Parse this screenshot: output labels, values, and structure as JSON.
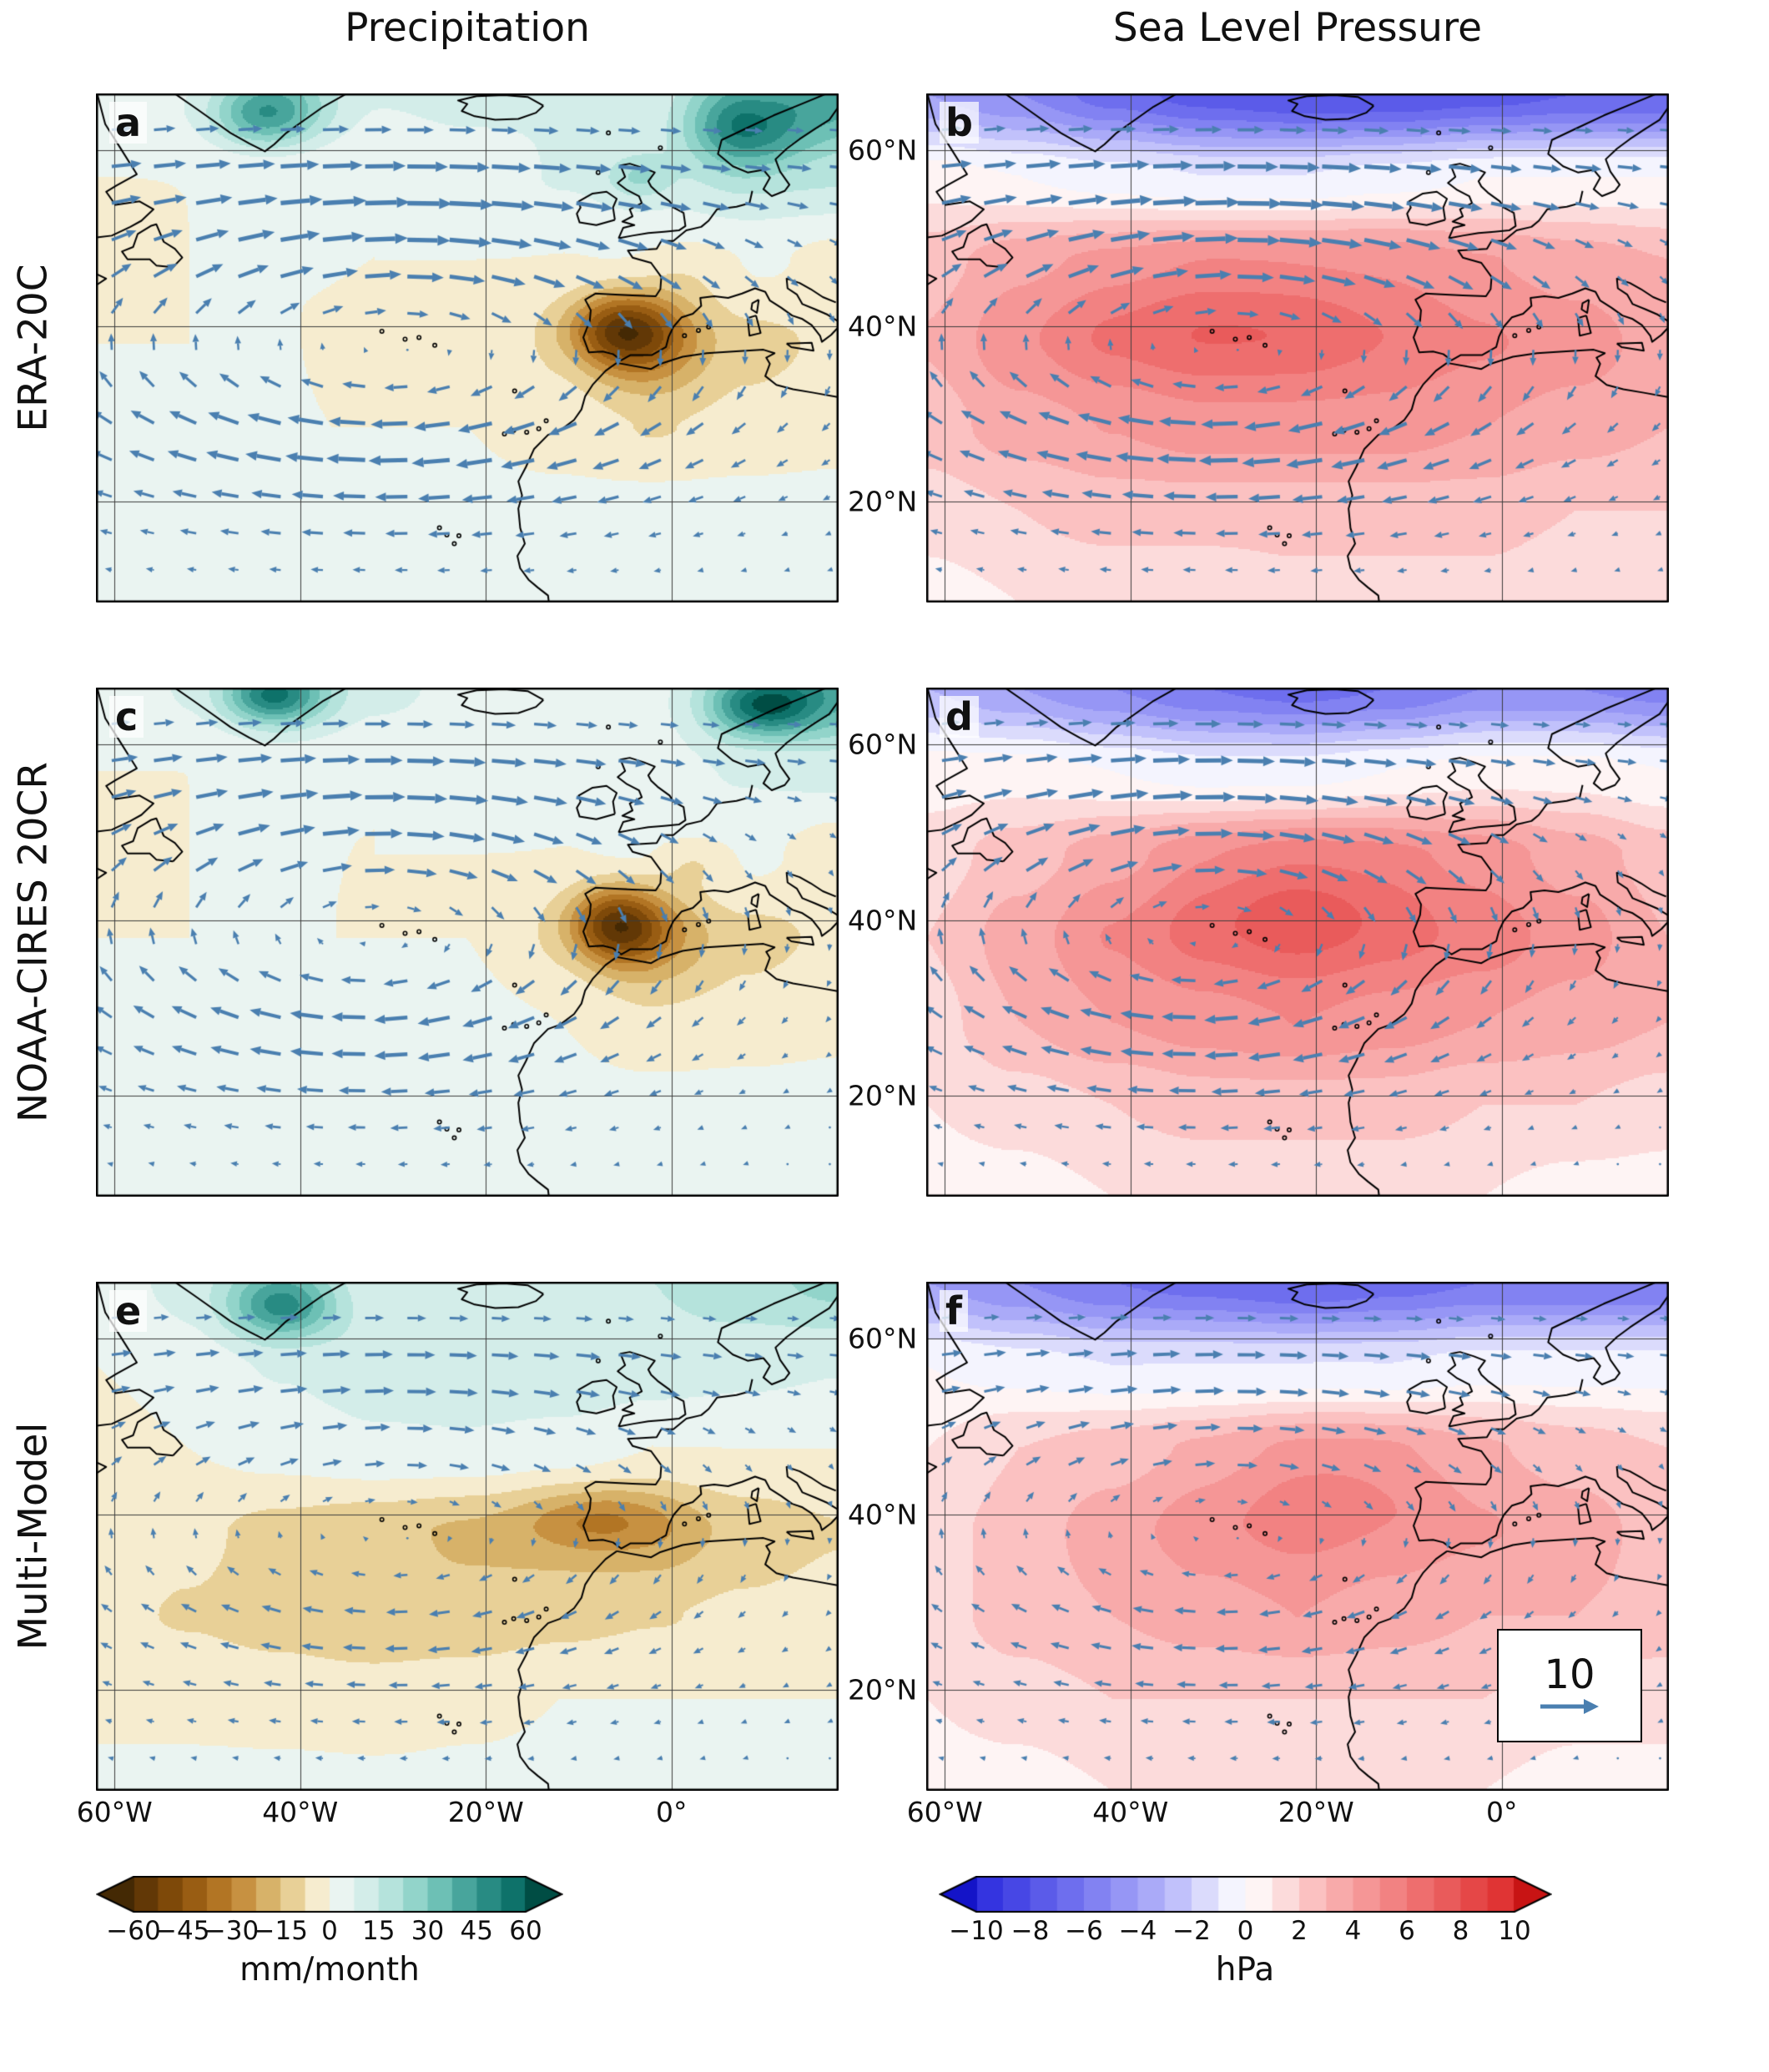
{
  "figure": {
    "columns": [
      {
        "title": "Precipitation"
      },
      {
        "title": "Sea Level Pressure"
      }
    ],
    "rows": [
      {
        "label": "ERA-20C"
      },
      {
        "label": "NOAA-CIRES 20CR"
      },
      {
        "label": "Multi-Model"
      }
    ],
    "panels": [
      {
        "id": "a"
      },
      {
        "id": "b"
      },
      {
        "id": "c"
      },
      {
        "id": "d"
      },
      {
        "id": "e"
      },
      {
        "id": "f"
      }
    ],
    "axes": {
      "extent": {
        "lon_min": -62,
        "lon_max": 18,
        "lat_min": 8.5,
        "lat_max": 66.5
      },
      "lat_ticks": [
        {
          "value": 60,
          "label": "60°N"
        },
        {
          "value": 40,
          "label": "40°N"
        },
        {
          "value": 20,
          "label": "20°N"
        }
      ],
      "lon_ticks": [
        {
          "value": -60,
          "label": "60°W"
        },
        {
          "value": -40,
          "label": "40°W"
        },
        {
          "value": -20,
          "label": "20°W"
        },
        {
          "value": 0,
          "label": "0°"
        }
      ]
    },
    "vector_legend": {
      "value": "10"
    },
    "colorbars": [
      {
        "label": "mm/month",
        "vmin": -60,
        "vmax": 60,
        "step": 7.5,
        "ticks": [
          {
            "value": -60,
            "label": "−60"
          },
          {
            "value": -45,
            "label": "−45"
          },
          {
            "value": -30,
            "label": "−30"
          },
          {
            "value": -15,
            "label": "−15"
          },
          {
            "value": 0,
            "label": "0"
          },
          {
            "value": 15,
            "label": "15"
          },
          {
            "value": 30,
            "label": "30"
          },
          {
            "value": 45,
            "label": "45"
          },
          {
            "value": 60,
            "label": "60"
          }
        ]
      },
      {
        "label": "hPa",
        "vmin": -10,
        "vmax": 10,
        "step": 1,
        "ticks": [
          {
            "value": -10,
            "label": "−10"
          },
          {
            "value": -8,
            "label": "−8"
          },
          {
            "value": -6,
            "label": "−6"
          },
          {
            "value": -4,
            "label": "−4"
          },
          {
            "value": -2,
            "label": "−2"
          },
          {
            "value": 0,
            "label": "0"
          },
          {
            "value": 2,
            "label": "2"
          },
          {
            "value": 4,
            "label": "4"
          },
          {
            "value": 6,
            "label": "6"
          },
          {
            "value": 8,
            "label": "8"
          },
          {
            "value": 10,
            "label": "10"
          }
        ]
      }
    ],
    "colors": {
      "arrow": "#4a7fb0",
      "coast": "#000000",
      "grid": "#3c3c3c",
      "precip_stops": [
        [
          -70,
          "#3f2604"
        ],
        [
          -60,
          "#543005"
        ],
        [
          -45,
          "#8c510a"
        ],
        [
          -30,
          "#bf812d"
        ],
        [
          -15,
          "#dfc27d"
        ],
        [
          -5,
          "#f6e8c3"
        ],
        [
          0,
          "#f7f7f4"
        ],
        [
          5,
          "#e6f3f0"
        ],
        [
          15,
          "#c7eae5"
        ],
        [
          30,
          "#80cdc1"
        ],
        [
          45,
          "#35978f"
        ],
        [
          60,
          "#01665e"
        ],
        [
          70,
          "#00453b"
        ]
      ],
      "slp_stops": [
        [
          -11,
          "#1414c8"
        ],
        [
          -10,
          "#2a2ade"
        ],
        [
          -6,
          "#7878f0"
        ],
        [
          -3,
          "#b4b4fa"
        ],
        [
          -1,
          "#e8e8fd"
        ],
        [
          0,
          "#ffffff"
        ],
        [
          1,
          "#fde8e8"
        ],
        [
          3,
          "#fab4b4"
        ],
        [
          6,
          "#f07878"
        ],
        [
          10,
          "#de2a2a"
        ],
        [
          11,
          "#c81414"
        ]
      ]
    }
  },
  "chart_data": {
    "type": "heatmap",
    "grid_lons": [
      -62,
      -52,
      -42,
      -32,
      -22,
      -12,
      -2,
      8,
      18
    ],
    "grid_lats": [
      66.5,
      57,
      47.5,
      38,
      28.5,
      19,
      8.5
    ],
    "panels": {
      "a": {
        "kind": "precip",
        "row": "ERA-20C",
        "units": "mm/month",
        "values": [
          [
            0,
            5,
            20,
            8,
            10,
            8,
            8,
            20,
            40
          ],
          [
            0,
            0,
            0,
            0,
            3,
            8,
            8,
            12,
            15
          ],
          [
            -3,
            0,
            0,
            0,
            0,
            0,
            3,
            3,
            -3
          ],
          [
            0,
            0,
            0,
            0,
            0,
            -6,
            -25,
            -10,
            -6
          ],
          [
            0,
            0,
            0,
            0,
            0,
            -3,
            -8,
            -5,
            -3
          ],
          [
            2,
            2,
            2,
            2,
            2,
            2,
            3,
            3,
            3
          ],
          [
            4,
            4,
            4,
            4,
            4,
            4,
            4,
            4,
            4
          ]
        ],
        "features": [
          {
            "lon": -5.5,
            "lat": 39.5,
            "sx": 4,
            "sy": 3,
            "amp": -42
          },
          {
            "lon": 8,
            "lat": 62.5,
            "sx": 4.5,
            "sy": 3.5,
            "amp": 38
          },
          {
            "lon": -44,
            "lat": 64,
            "sx": 4,
            "sy": 2.5,
            "amp": 30
          },
          {
            "lon": -3.5,
            "lat": 57,
            "sx": 2.5,
            "sy": 1.8,
            "amp": 16
          },
          {
            "lon": 2,
            "lat": 46.5,
            "sx": 4,
            "sy": 2.5,
            "amp": -8
          }
        ]
      },
      "b": {
        "kind": "slp",
        "row": "ERA-20C",
        "units": "hPa",
        "values": [
          [
            -4,
            -5,
            -6.5,
            -7.5,
            -8,
            -8,
            -7.5,
            -7,
            -7
          ],
          [
            0.5,
            0,
            -0.5,
            -1,
            -1,
            -0.5,
            0,
            0,
            0
          ],
          [
            2.5,
            3.5,
            4,
            4.5,
            4.5,
            4.5,
            4,
            3.5,
            3
          ],
          [
            3,
            4.5,
            5.5,
            6,
            6,
            5.5,
            5,
            4.5,
            3.5
          ],
          [
            2.5,
            3.5,
            4,
            4.5,
            4.5,
            4.5,
            4,
            3.5,
            3
          ],
          [
            1.5,
            2,
            2.5,
            2.5,
            2.5,
            2.5,
            2.5,
            2,
            2
          ],
          [
            0.5,
            1,
            1,
            1,
            1.5,
            1.5,
            1.5,
            1,
            1
          ]
        ],
        "features": [
          {
            "lon": -30,
            "lat": 41,
            "sx": 14,
            "sy": 5,
            "amp": 1.2
          }
        ]
      },
      "c": {
        "kind": "precip",
        "row": "NOAA-CIRES 20CR",
        "units": "mm/month",
        "values": [
          [
            0,
            8,
            25,
            10,
            5,
            5,
            5,
            15,
            35
          ],
          [
            0,
            0,
            0,
            0,
            2,
            5,
            5,
            8,
            10
          ],
          [
            -3,
            0,
            0,
            0,
            0,
            0,
            3,
            3,
            -5
          ],
          [
            0,
            0,
            0,
            0,
            0,
            -6,
            -22,
            -10,
            -6
          ],
          [
            2,
            2,
            2,
            2,
            2,
            0,
            -6,
            -4,
            -2
          ],
          [
            3,
            3,
            3,
            3,
            3,
            3,
            3,
            3,
            3
          ],
          [
            4,
            4,
            4,
            4,
            4,
            4,
            4,
            4,
            4
          ]
        ],
        "features": [
          {
            "lon": -6,
            "lat": 39.5,
            "sx": 3.5,
            "sy": 3,
            "amp": -45
          },
          {
            "lon": 10,
            "lat": 64.5,
            "sx": 4,
            "sy": 2.5,
            "amp": 48
          },
          {
            "lon": -43,
            "lat": 65.5,
            "sx": 3.5,
            "sy": 2,
            "amp": 32
          },
          {
            "lon": 2.5,
            "lat": 46.5,
            "sx": 3,
            "sy": 2,
            "amp": -10
          }
        ]
      },
      "d": {
        "kind": "slp",
        "row": "NOAA-CIRES 20CR",
        "units": "hPa",
        "values": [
          [
            -3,
            -4,
            -5,
            -6,
            -6.5,
            -6,
            -5,
            -5,
            -5.5
          ],
          [
            0.5,
            0.5,
            0,
            -0.5,
            -0.5,
            0,
            0.5,
            0.5,
            0
          ],
          [
            1.5,
            2.5,
            3.5,
            4.5,
            5,
            5,
            4.5,
            3.5,
            2.5
          ],
          [
            2,
            3.5,
            5,
            6,
            6.5,
            6,
            5.5,
            4.5,
            3
          ],
          [
            1.5,
            3,
            4,
            4.5,
            5,
            4.5,
            4,
            3.5,
            3
          ],
          [
            1,
            1.5,
            2,
            2.5,
            2.5,
            2.5,
            2,
            2,
            1.5
          ],
          [
            0.5,
            0.5,
            1,
            1,
            1,
            1,
            1,
            0.5,
            0.5
          ]
        ],
        "features": [
          {
            "lon": -22,
            "lat": 42,
            "sx": 9,
            "sy": 4.5,
            "amp": 1.5
          }
        ]
      },
      "e": {
        "kind": "precip",
        "row": "Multi-Model",
        "units": "mm/month",
        "values": [
          [
            3,
            10,
            22,
            8,
            12,
            15,
            15,
            20,
            25
          ],
          [
            0,
            3,
            8,
            12,
            15,
            15,
            12,
            10,
            8
          ],
          [
            -3,
            0,
            3,
            6,
            6,
            4,
            0,
            0,
            0
          ],
          [
            -4,
            -6,
            -10,
            -13,
            -16,
            -18,
            -20,
            -12,
            -8
          ],
          [
            -6,
            -8,
            -10,
            -13,
            -13,
            -10,
            -8,
            -6,
            -4
          ],
          [
            -3,
            -3,
            -4,
            -4,
            -2,
            0,
            0,
            0,
            0
          ],
          [
            3,
            3,
            3,
            2,
            2,
            2,
            2,
            2,
            2
          ]
        ],
        "features": [
          {
            "lon": -42,
            "lat": 63.5,
            "sx": 4,
            "sy": 2.5,
            "amp": 30
          },
          {
            "lon": -8,
            "lat": 39.5,
            "sx": 5,
            "sy": 2.5,
            "amp": -14
          }
        ]
      },
      "f": {
        "kind": "slp",
        "row": "Multi-Model",
        "units": "hPa",
        "values": [
          [
            -4,
            -5,
            -6,
            -6.5,
            -7,
            -6.5,
            -6,
            -6,
            -6
          ],
          [
            0,
            -0.5,
            -1,
            -1,
            -1,
            -1,
            -0.5,
            -0.5,
            -0.5
          ],
          [
            1,
            2,
            2.5,
            3,
            3.5,
            3.5,
            3,
            2.5,
            2
          ],
          [
            1.5,
            2.5,
            3.5,
            4.5,
            5,
            4.5,
            4,
            3.5,
            2.5
          ],
          [
            1.5,
            2.5,
            3,
            3.5,
            4,
            3.5,
            3,
            3,
            2.5
          ],
          [
            1,
            1.5,
            2,
            2,
            2,
            2,
            2,
            1.5,
            1.5
          ],
          [
            0.5,
            0.5,
            1,
            1,
            1,
            1,
            1,
            0.5,
            0.5
          ]
        ],
        "features": [
          {
            "lon": -18,
            "lat": 44,
            "sx": 9,
            "sy": 4.5,
            "amp": 1.2
          }
        ]
      }
    },
    "winds": [
      {
        "row": "ERA-20C",
        "center": [
          -30,
          37.5
        ],
        "sx": 27,
        "sy": 11.5,
        "amp": 13,
        "jet_amp": 3.5,
        "jet_lat": 58.5,
        "jet_width": 7
      },
      {
        "row": "NOAA-CIRES 20CR",
        "center": [
          -32,
          38.5
        ],
        "sx": 24,
        "sy": 11.5,
        "amp": 11.5,
        "jet_amp": 3,
        "jet_lat": 59,
        "jet_width": 7
      },
      {
        "row": "Multi-Model",
        "center": [
          -30,
          38
        ],
        "sx": 26,
        "sy": 12,
        "amp": 7.5,
        "jet_amp": 2.5,
        "jet_lat": 58.5,
        "jet_width": 7
      }
    ],
    "reference_vector": 10
  }
}
